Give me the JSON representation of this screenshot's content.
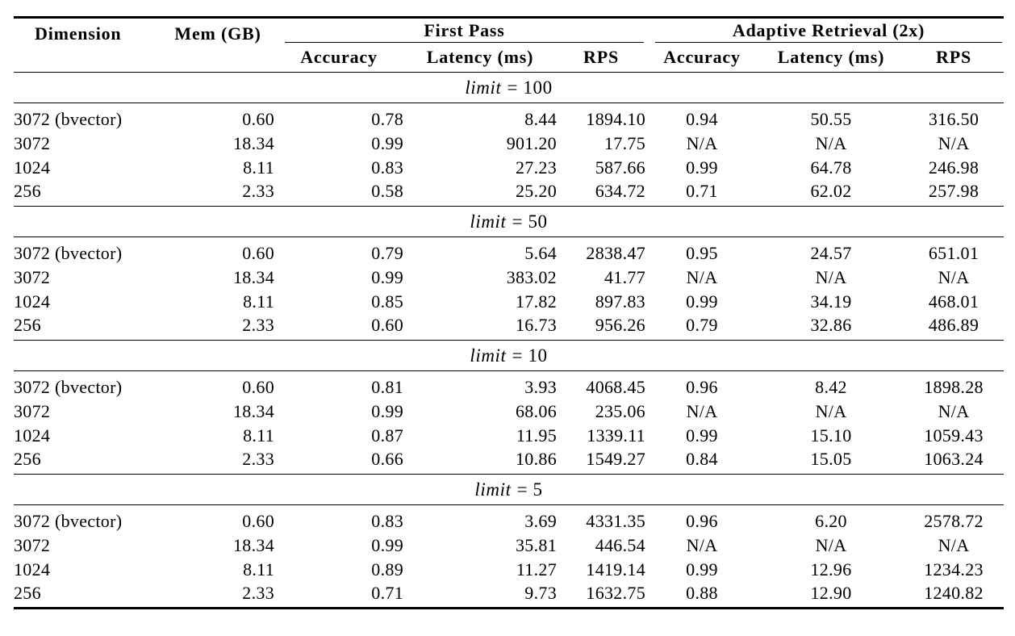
{
  "colors": {
    "background": "#ffffff",
    "text": "#000000",
    "rule": "#000000"
  },
  "table": {
    "header": {
      "dimension": "Dimension",
      "mem": "Mem (GB)",
      "group_first_pass": "First Pass",
      "group_adaptive": "Adaptive Retrieval (2x)",
      "subheaders": {
        "fp_accuracy": "Accuracy",
        "fp_latency": "Latency (ms)",
        "fp_rps": "RPS",
        "ar_accuracy": "Accuracy",
        "ar_latency": "Latency (ms)",
        "ar_rps": "RPS"
      }
    },
    "sections": [
      {
        "limit_var": "limit",
        "limit_rest": "= 100",
        "rows": [
          [
            "3072 (bvector)",
            "0.60",
            "0.78",
            "8.44",
            "1894.10",
            "0.94",
            "50.55",
            "316.50"
          ],
          [
            "3072",
            "18.34",
            "0.99",
            "901.20",
            "17.75",
            "N/A",
            "N/A",
            "N/A"
          ],
          [
            "1024",
            "8.11",
            "0.83",
            "27.23",
            "587.66",
            "0.99",
            "64.78",
            "246.98"
          ],
          [
            "256",
            "2.33",
            "0.58",
            "25.20",
            "634.72",
            "0.71",
            "62.02",
            "257.98"
          ]
        ]
      },
      {
        "limit_var": "limit",
        "limit_rest": "= 50",
        "rows": [
          [
            "3072 (bvector)",
            "0.60",
            "0.79",
            "5.64",
            "2838.47",
            "0.95",
            "24.57",
            "651.01"
          ],
          [
            "3072",
            "18.34",
            "0.99",
            "383.02",
            "41.77",
            "N/A",
            "N/A",
            "N/A"
          ],
          [
            "1024",
            "8.11",
            "0.85",
            "17.82",
            "897.83",
            "0.99",
            "34.19",
            "468.01"
          ],
          [
            "256",
            "2.33",
            "0.60",
            "16.73",
            "956.26",
            "0.79",
            "32.86",
            "486.89"
          ]
        ]
      },
      {
        "limit_var": "limit",
        "limit_rest": "= 10",
        "rows": [
          [
            "3072 (bvector)",
            "0.60",
            "0.81",
            "3.93",
            "4068.45",
            "0.96",
            "8.42",
            "1898.28"
          ],
          [
            "3072",
            "18.34",
            "0.99",
            "68.06",
            "235.06",
            "N/A",
            "N/A",
            "N/A"
          ],
          [
            "1024",
            "8.11",
            "0.87",
            "11.95",
            "1339.11",
            "0.99",
            "15.10",
            "1059.43"
          ],
          [
            "256",
            "2.33",
            "0.66",
            "10.86",
            "1549.27",
            "0.84",
            "15.05",
            "1063.24"
          ]
        ]
      },
      {
        "limit_var": "limit",
        "limit_rest": "= 5",
        "rows": [
          [
            "3072 (bvector)",
            "0.60",
            "0.83",
            "3.69",
            "4331.35",
            "0.96",
            "6.20",
            "2578.72"
          ],
          [
            "3072",
            "18.34",
            "0.99",
            "35.81",
            "446.54",
            "N/A",
            "N/A",
            "N/A"
          ],
          [
            "1024",
            "8.11",
            "0.89",
            "11.27",
            "1419.14",
            "0.99",
            "12.96",
            "1234.23"
          ],
          [
            "256",
            "2.33",
            "0.71",
            "9.73",
            "1632.75",
            "0.88",
            "12.90",
            "1240.82"
          ]
        ]
      }
    ]
  }
}
